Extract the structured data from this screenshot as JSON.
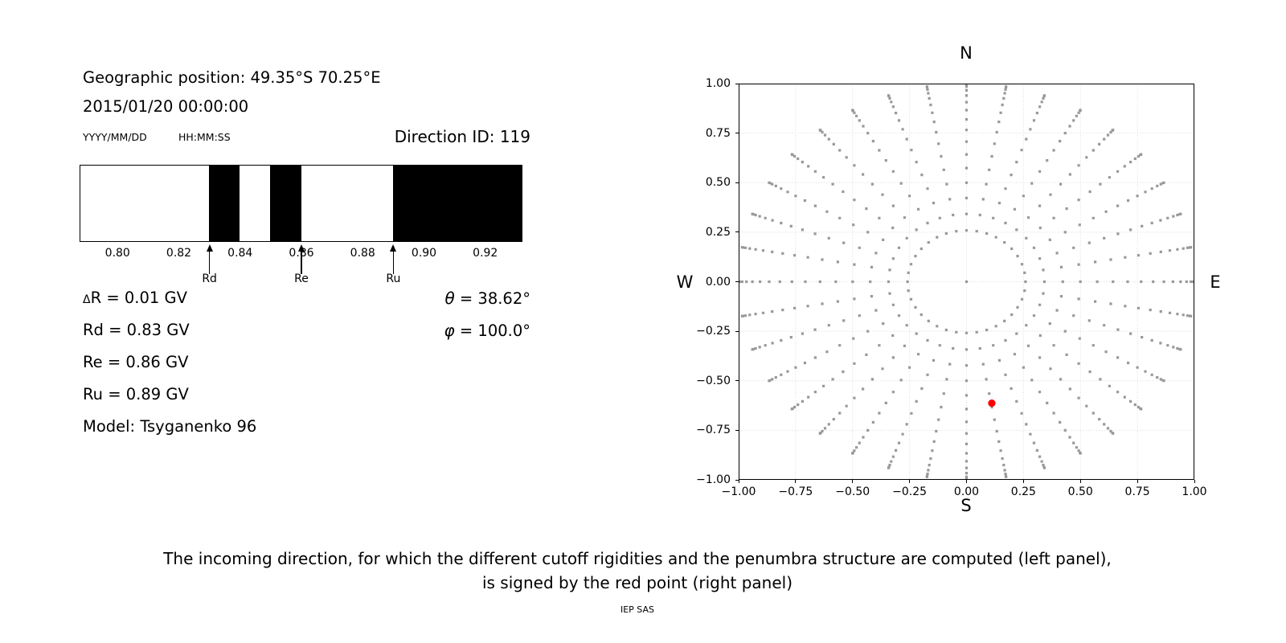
{
  "panel_left": {
    "geo_text": "Geographic position: 49.35°S 70.25°E",
    "datetime_text": "2015/01/20 00:00:00",
    "date_format_label": "YYYY/MM/DD",
    "time_format_label": "HH:MM:SS",
    "stats": {
      "delta_symbol": "Δ",
      "delta_rest": "R = 0.01 GV",
      "rd": "Rd = 0.83 GV",
      "re": "Re = 0.86 GV",
      "ru": "Ru = 0.89 GV",
      "model": "Model: Tsyganenko 96",
      "theta_symbol": "θ",
      "theta_rest": " = 38.62°",
      "phi_symbol": "φ",
      "phi_rest": " = 100.0°"
    }
  },
  "caption": {
    "line1": "The incoming direction, for which the different cutoff rigidities and the penumbra structure are computed (left panel),",
    "line2": "is signed by the red point (right panel)",
    "credit": "IEP SAS"
  },
  "chart_data": [
    {
      "id": "penumbra-structure",
      "type": "bar",
      "title": "Direction ID: 119",
      "unit": "GV",
      "xlim": [
        0.788,
        0.932
      ],
      "xticks": [
        0.8,
        0.82,
        0.84,
        0.86,
        0.88,
        0.9,
        0.92
      ],
      "xtick_labels": [
        "0.80",
        "0.82",
        "0.84",
        "0.86",
        "0.88",
        "0.90",
        "0.92"
      ],
      "band_color": "#000000",
      "forbidden_bands": [
        [
          0.83,
          0.84
        ],
        [
          0.85,
          0.86
        ],
        [
          0.89,
          0.932
        ]
      ],
      "cutoff_arrows": [
        {
          "label": "Rd",
          "value": 0.83
        },
        {
          "label": "Re",
          "value": 0.86
        },
        {
          "label": "Ru",
          "value": 0.89
        }
      ],
      "values": {
        "delta_R_GV": 0.01,
        "Rd_GV": 0.83,
        "Re_GV": 0.86,
        "Ru_GV": 0.89,
        "theta_deg": 38.62,
        "phi_deg": 100.0,
        "model": "Tsyganenko 96"
      }
    },
    {
      "id": "incoming-direction-grid",
      "type": "scatter",
      "xlim": [
        -1,
        1
      ],
      "ylim": [
        -1,
        1
      ],
      "xticks": [
        -1,
        -0.75,
        -0.5,
        -0.25,
        0,
        0.25,
        0.5,
        0.75,
        1
      ],
      "yticks": [
        1,
        0.75,
        0.5,
        0.25,
        0,
        -0.25,
        -0.5,
        -0.75,
        -1
      ],
      "xtick_labels": [
        "−1.00",
        "−0.75",
        "−0.50",
        "−0.25",
        "0.00",
        "0.25",
        "0.50",
        "0.75",
        "1.00"
      ],
      "ytick_labels": [
        "1.00",
        "0.75",
        "0.50",
        "0.25",
        "0.00",
        "−0.25",
        "−0.50",
        "−0.75",
        "−1.00"
      ],
      "compass": {
        "top": "N",
        "bottom": "S",
        "left": "W",
        "right": "E"
      },
      "grid": true,
      "grid_color": "#d9d9d9",
      "dot_color": "#999999",
      "dot_size_px": 3.2,
      "spokes": {
        "azimuth_deg_start": 0,
        "azimuth_deg_stop": 350,
        "azimuth_deg_step": 10,
        "zenith_deg_start": 15,
        "zenith_deg_stop": 90,
        "zenith_deg_step": 5,
        "radius_rule": "sin(zenith)"
      },
      "center_point": {
        "x": 0,
        "y": 0
      },
      "red_point": {
        "x": 0.111,
        "y": -0.613,
        "color": "#ff0000",
        "radius_px": 4.6
      }
    }
  ]
}
